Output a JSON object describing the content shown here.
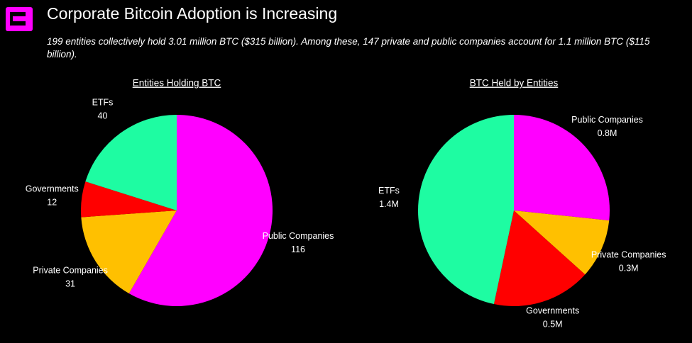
{
  "title": "Corporate Bitcoin Adoption is Increasing",
  "subtitle": "199 entities collectively hold 3.01 million BTC ($315 billion). Among these, 147 private and public companies account for 1.1 million BTC ($115 billion).",
  "chart_data": [
    {
      "type": "pie",
      "title": "Entities Holding BTC",
      "categories": [
        "Public Companies",
        "Private Companies",
        "Governments",
        "ETFs"
      ],
      "values": [
        116,
        31,
        12,
        40
      ],
      "colors": [
        "#ff00ff",
        "#ffc000",
        "#ff0000",
        "#1efca2"
      ]
    },
    {
      "type": "pie",
      "title": "BTC Held by Entities",
      "categories": [
        "Public Companies",
        "Private Companies",
        "Governments",
        "ETFs"
      ],
      "values": [
        0.8,
        0.3,
        0.5,
        1.4
      ],
      "value_labels": [
        "0.8M",
        "0.3M",
        "0.5M",
        "1.4M"
      ],
      "colors": [
        "#ff00ff",
        "#ffc000",
        "#ff0000",
        "#1efca2"
      ]
    }
  ]
}
